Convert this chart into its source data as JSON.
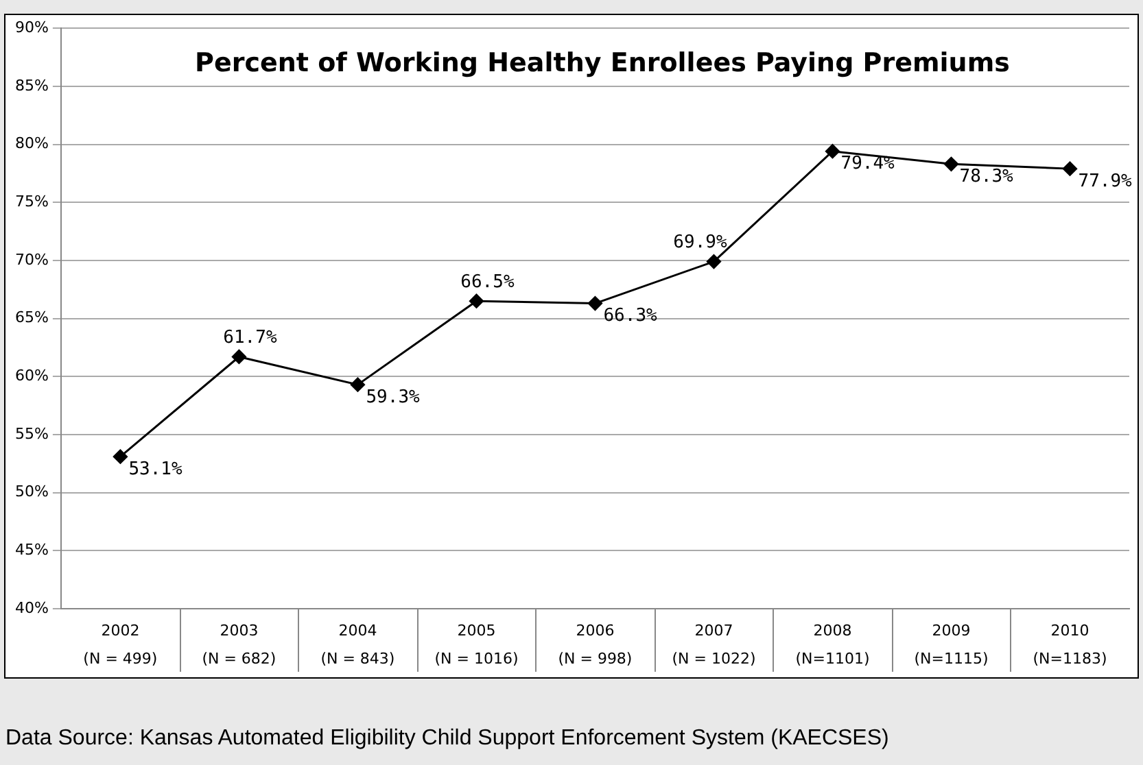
{
  "chart_data": {
    "type": "line",
    "title": "Percent of Working Healthy Enrollees Paying Premiums",
    "categories": [
      "2002\n(N = 499)",
      "2003\n(N = 682)",
      "2004\n(N = 843)",
      "2005\n(N = 1016)",
      "2006\n(N = 998)",
      "2007\n(N = 1022)",
      "2008\n(N=1101)",
      "2009\n(N=1115)",
      "2010\n(N=1183)"
    ],
    "series": [
      {
        "color": "#000000",
        "values": [
          53.1,
          61.7,
          59.3,
          66.5,
          66.3,
          69.9,
          79.4,
          78.3,
          77.9
        ],
        "value_labels": [
          "53.1%",
          "61.7%",
          "59.3%",
          "66.5%",
          "66.3%",
          "69.9%",
          "79.4%",
          "78.3%",
          "77.9%"
        ]
      }
    ],
    "ylim": [
      40,
      90
    ],
    "yticks": [
      {
        "value": 40,
        "label": "40%"
      },
      {
        "value": 45,
        "label": "45%"
      },
      {
        "value": 50,
        "label": "50%"
      },
      {
        "value": 55,
        "label": "55%"
      },
      {
        "value": 60,
        "label": "60%"
      },
      {
        "value": 65,
        "label": "65%"
      },
      {
        "value": 70,
        "label": "70%"
      },
      {
        "value": 75,
        "label": "75%"
      },
      {
        "value": 80,
        "label": "80%"
      },
      {
        "value": 85,
        "label": "85%"
      },
      {
        "value": 90,
        "label": "90%"
      }
    ],
    "grid": "y",
    "legend": false,
    "marker": "diamond",
    "line_style": "solid",
    "annotations": [
      "Data Source: Kansas Automated Eligibility Child Support Enforcement System (KAECSES)"
    ]
  }
}
